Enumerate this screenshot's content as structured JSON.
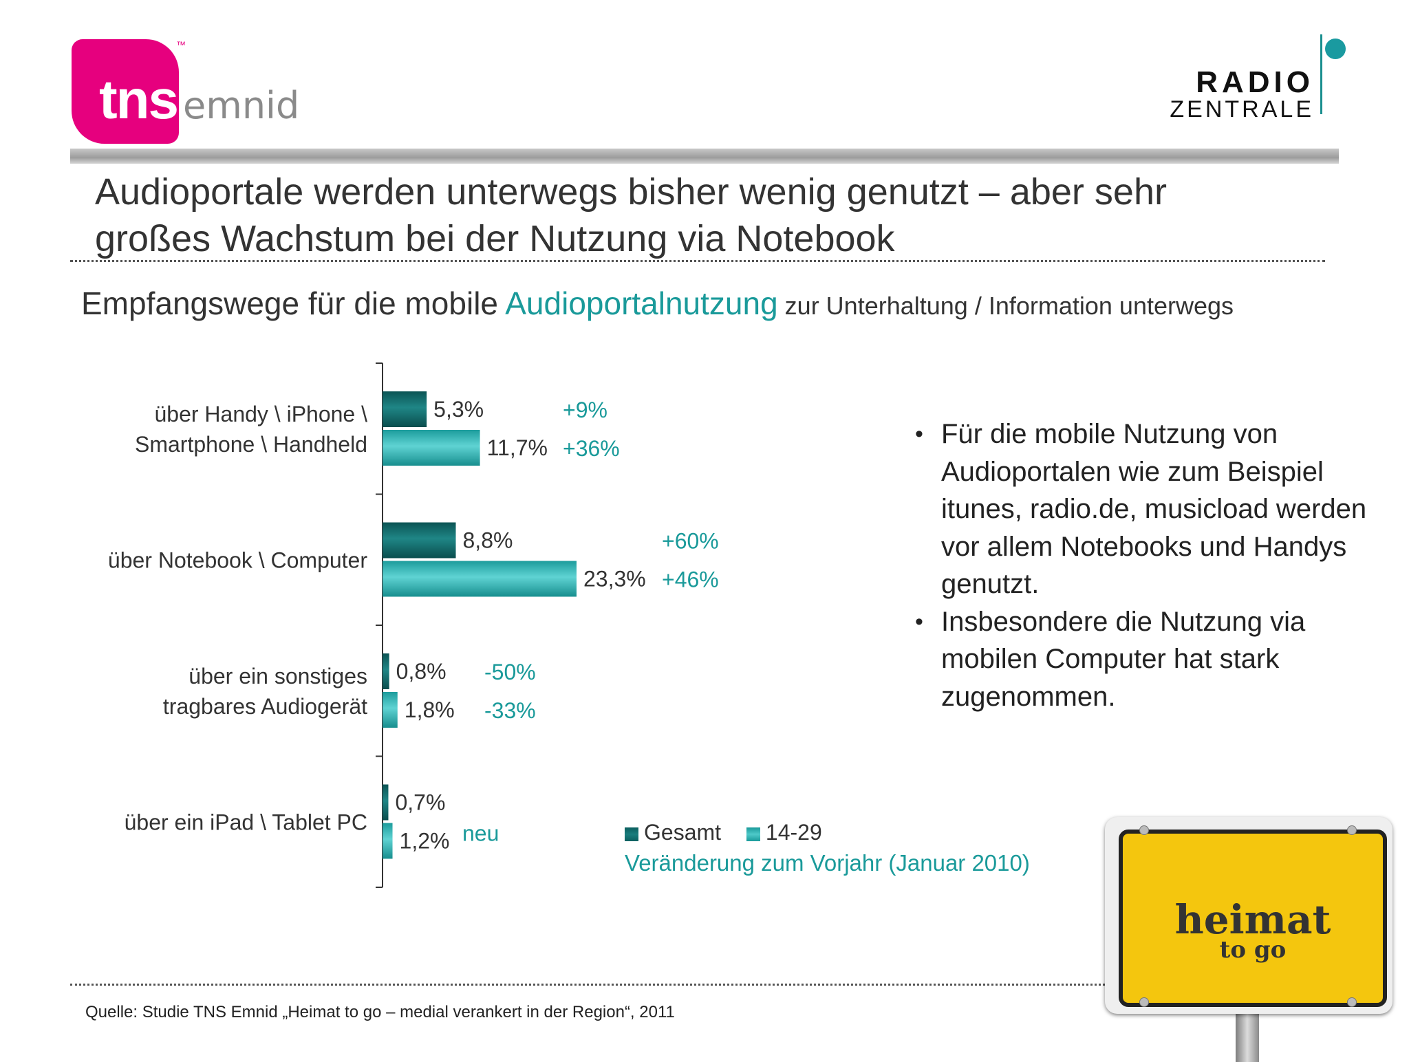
{
  "logos": {
    "tns_main": "tns",
    "tns_tm": "™",
    "tns_emnid": "emnid",
    "radio": "RADIO",
    "zentrale": "ZENTRALE"
  },
  "title_lines": [
    "Audioportale werden unterwegs bisher wenig genutzt – aber sehr",
    "großes Wachstum bei der Nutzung via Notebook"
  ],
  "subtitle": {
    "part1": "Empfangswege für die mobile ",
    "accent": "Audioportalnutzung",
    "part2": " zur Unterhaltung / Information unterwegs"
  },
  "chart_data": {
    "type": "bar",
    "orientation": "horizontal",
    "categories": [
      [
        "über Handy \\ iPhone \\",
        "Smartphone \\ Handheld"
      ],
      [
        "über Notebook \\ Computer"
      ],
      [
        "über ein sonstiges",
        "tragbares Audiogerät"
      ],
      [
        "über ein iPad \\ Tablet PC"
      ]
    ],
    "series": [
      {
        "name": "Gesamt",
        "values": [
          5.3,
          8.8,
          0.8,
          0.7
        ],
        "labels": [
          "5,3%",
          "8,8%",
          "0,8%",
          "0,7%"
        ],
        "color": "#0f6a6a"
      },
      {
        "name": "14-29",
        "values": [
          11.7,
          23.3,
          1.8,
          1.2
        ],
        "labels": [
          "11,7%",
          "23,3%",
          "1,8%",
          "1,2%"
        ],
        "color": "#2fb3b3"
      }
    ],
    "changes": [
      [
        "+9%",
        "+36%"
      ],
      [
        "+60%",
        "+46%"
      ],
      [
        "-50%",
        "-33%"
      ],
      [
        null,
        "neu"
      ]
    ],
    "change_color": "#1a9a9a",
    "xlim": [
      0,
      25
    ]
  },
  "legend": {
    "items": [
      "Gesamt",
      "14-29"
    ],
    "note": "Veränderung zum Vorjahr (Januar 2010)"
  },
  "bullets": [
    "Für die mobile Nutzung von Audioportalen wie zum Beispiel itunes, radio.de, musicload werden vor allem Notebooks und Handys genutzt.",
    "Insbesondere die Nutzung via mobilen Computer hat stark zugenommen."
  ],
  "source": "Quelle: Studie TNS Emnid „Heimat to go  – medial verankert in der Region“, 2011",
  "sign": {
    "word": "heimat",
    "sub": "to go"
  }
}
